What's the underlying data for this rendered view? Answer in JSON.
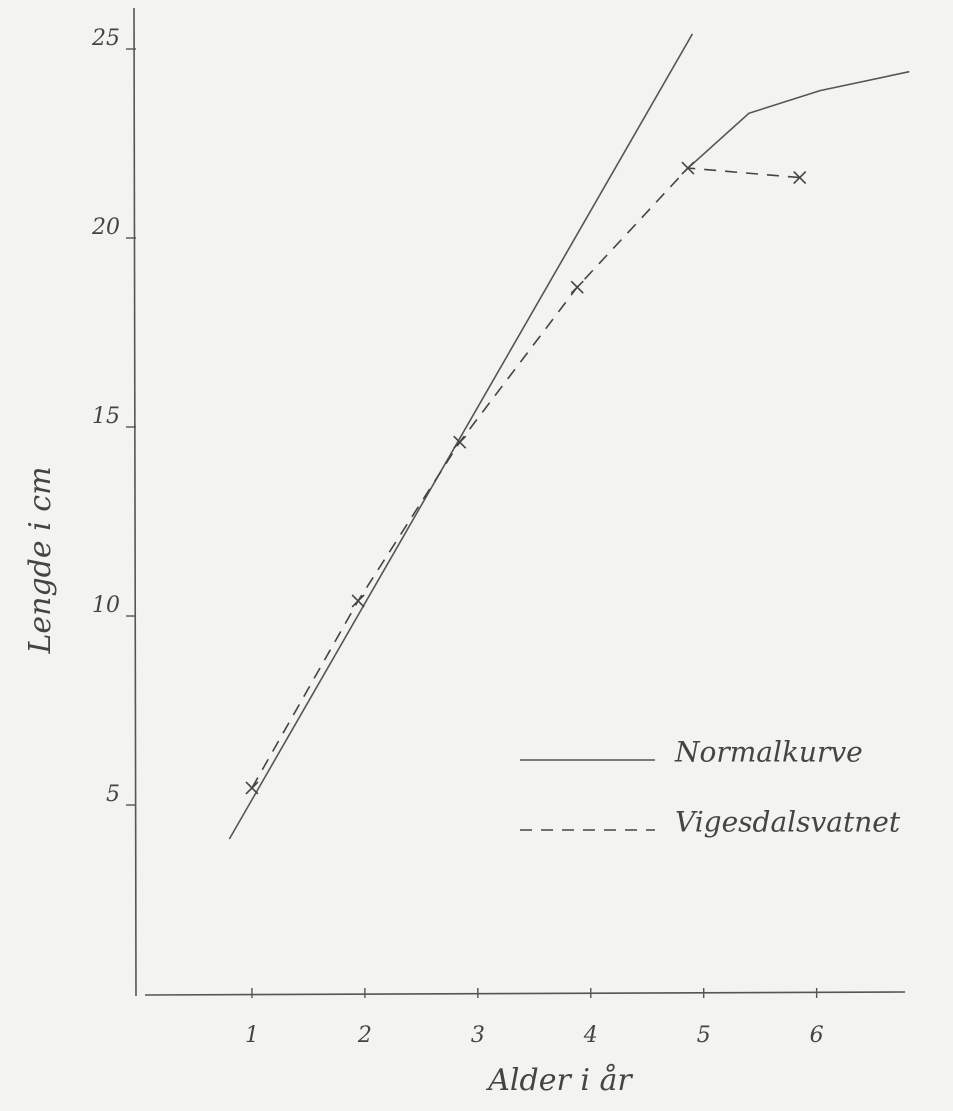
{
  "chart_data": {
    "type": "line",
    "xlabel": "Alder i år",
    "ylabel": "Lengde i cm",
    "xlim": [
      0,
      6.8
    ],
    "ylim": [
      0,
      25.9
    ],
    "xticks": [
      1,
      2,
      3,
      4,
      5,
      6
    ],
    "yticks": [
      5,
      10,
      15,
      20,
      25
    ],
    "grid": false,
    "legend": "lower right",
    "series": [
      {
        "name": "Normalkurve",
        "color": "#555555",
        "dash": false,
        "markers": false,
        "x": [
          0.8,
          4.9,
          4.9,
          4.88,
          5.4,
          6.03,
          6.82
        ],
        "values": [
          4.1,
          25.4,
          null,
          21.9,
          23.3,
          23.9,
          24.4
        ]
      },
      {
        "name": "Vigesdalsvatnet",
        "color": "#444444",
        "dash": true,
        "markers": true,
        "x": [
          1.0,
          1.94,
          2.84,
          3.88,
          4.86,
          5.85
        ],
        "values": [
          5.45,
          10.4,
          14.6,
          18.7,
          21.85,
          21.6
        ]
      }
    ]
  }
}
